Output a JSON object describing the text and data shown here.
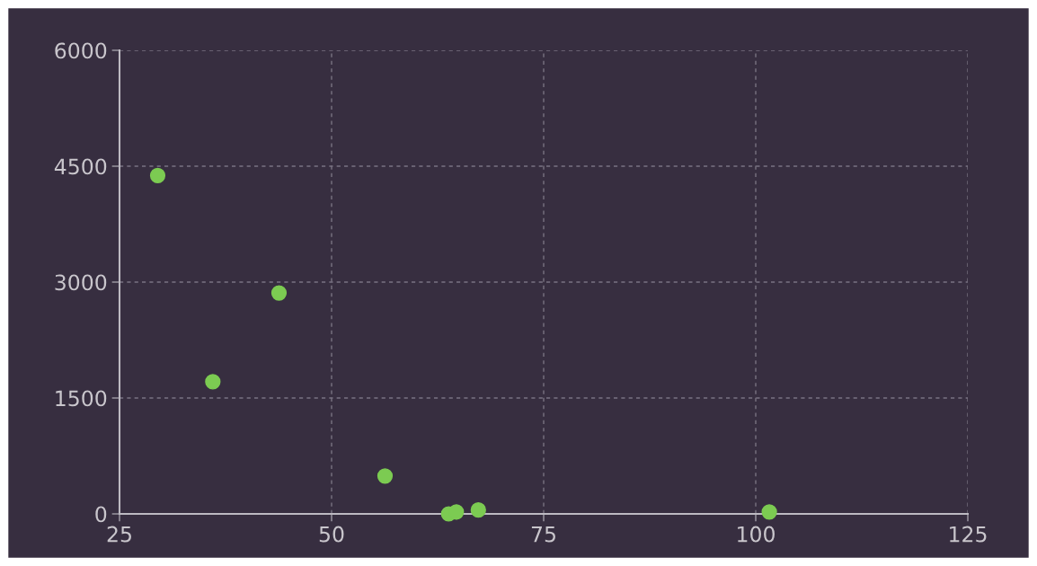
{
  "chart_data": {
    "type": "scatter",
    "x": [
      29.5,
      36,
      43.8,
      56.3,
      63.8,
      64.7,
      67.3,
      101.6
    ],
    "series": [
      {
        "color": "#7ccb52",
        "values": [
          4380,
          1710,
          2860,
          490,
          0,
          25,
          50,
          25
        ]
      }
    ],
    "xlim": [
      25,
      125
    ],
    "xticks": [
      25,
      50,
      75,
      100,
      125
    ],
    "ylim": [
      0,
      6000
    ],
    "yticks": [
      0,
      1500,
      3000,
      4500,
      6000
    ],
    "grid": true,
    "marker": "circle",
    "legend": false
  }
}
